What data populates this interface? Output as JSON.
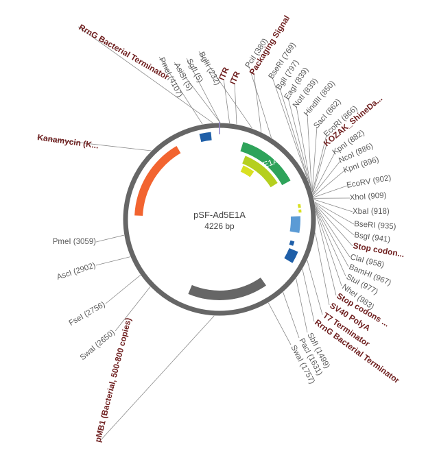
{
  "plasmid": {
    "name": "pSF-Ad5E1A",
    "size_label": "4226 bp",
    "total_bp": 4226
  },
  "colors": {
    "backbone": "#666666",
    "kanamycin": "#f26430",
    "orange_dark": "#d44a1a",
    "blue_dark": "#1f5fa8",
    "blue_light": "#5b9bd5",
    "green": "#2ea35a",
    "yellow_green": "#b5cf1f",
    "yellow": "#d9e021",
    "ori_grey": "#666666",
    "site_text": "#5a5a5a",
    "feature_text": "#6e1e1e"
  },
  "sites": [
    {
      "label": "BglII (232)",
      "bp": 232
    },
    {
      "label": "SgfI (5)",
      "bp": 5
    },
    {
      "label": "AsiSI (5)",
      "bp": 5
    },
    {
      "label": "PmeI (4107)",
      "bp": 4107
    },
    {
      "label": "PciI (380)",
      "bp": 380
    },
    {
      "label": "BseRI (769)",
      "bp": 769
    },
    {
      "label": "BglI (797)",
      "bp": 797
    },
    {
      "label": "EagI (839)",
      "bp": 839
    },
    {
      "label": "NotI (839)",
      "bp": 839
    },
    {
      "label": "HindIII (850)",
      "bp": 850
    },
    {
      "label": "SacI (862)",
      "bp": 862
    },
    {
      "label": "EcoRI (866)",
      "bp": 866
    },
    {
      "label": "KpnI (882)",
      "bp": 882
    },
    {
      "label": "NcoI (886)",
      "bp": 886
    },
    {
      "label": "KpnI (896)",
      "bp": 896
    },
    {
      "label": "EcoRV (902)",
      "bp": 902
    },
    {
      "label": "XhoI (909)",
      "bp": 909
    },
    {
      "label": "XbaI (918)",
      "bp": 918
    },
    {
      "label": "BseRI (935)",
      "bp": 935
    },
    {
      "label": "BsgI (941)",
      "bp": 941
    },
    {
      "label": "ClaI (958)",
      "bp": 958
    },
    {
      "label": "BamHI (967)",
      "bp": 967
    },
    {
      "label": "StuI (977)",
      "bp": 977
    },
    {
      "label": "NheI (983)",
      "bp": 983
    },
    {
      "label": "SbfI (1499)",
      "bp": 1499
    },
    {
      "label": "PacI (1631)",
      "bp": 1631
    },
    {
      "label": "SwaI (1757)",
      "bp": 1757
    },
    {
      "label": "SwaI (2650)",
      "bp": 2650
    },
    {
      "label": "FseI (2756)",
      "bp": 2756
    },
    {
      "label": "AscI (2902)",
      "bp": 2902
    },
    {
      "label": "PmeI (3059)",
      "bp": 3059
    }
  ],
  "features": [
    {
      "label": "RrnG Bacterial Terminator",
      "bp": 4180
    },
    {
      "label": "ITR",
      "bp": 70
    },
    {
      "label": "ITR",
      "bp": 120
    },
    {
      "label": "Packaging Signal",
      "bp": 300
    },
    {
      "label": "KOZAK_ShineDa...",
      "bp": 875
    },
    {
      "label": "Stop codon...",
      "bp": 950
    },
    {
      "label": "Stop codons ...",
      "bp": 1000
    },
    {
      "label": "SV40 PolyA",
      "bp": 1150
    },
    {
      "label": "T7 Terminator",
      "bp": 1350
    },
    {
      "label": "RrnG Bacterial Terminator",
      "bp": 1420
    },
    {
      "label": "Kanamycin (K...",
      "bp": 3700
    },
    {
      "label": "pMB1 (Bacterial, 500-800 copies)",
      "bp": 2150
    }
  ],
  "arcs": [
    {
      "name": "kanamycin-arc",
      "color": "#f26430",
      "start_bp": 3200,
      "end_bp": 3870
    },
    {
      "name": "rrng-terminator-arc-top",
      "color": "#1f5fa8",
      "start_bp": 4070,
      "end_bp": 4160
    },
    {
      "name": "e1a-arc",
      "color": "#2ea35a",
      "start_bp": 200,
      "end_bp": 720,
      "label": "E1A"
    },
    {
      "name": "orf-arc-inner-1",
      "color": "#b5cf1f",
      "start_bp": 260,
      "end_bp": 680
    },
    {
      "name": "orf-arc-inner-2",
      "color": "#d9e021",
      "start_bp": 280,
      "end_bp": 420
    },
    {
      "name": "stop-codon-arc-1",
      "color": "#d9e021",
      "start_bp": 930,
      "end_bp": 960
    },
    {
      "name": "stop-codon-arc-2",
      "color": "#d9e021",
      "start_bp": 975,
      "end_bp": 1000
    },
    {
      "name": "sv40-polya-arc",
      "color": "#5b9bd5",
      "start_bp": 1030,
      "end_bp": 1170
    },
    {
      "name": "t7-terminator-arc",
      "color": "#1f5fa8",
      "start_bp": 1250,
      "end_bp": 1290
    },
    {
      "name": "rrng-terminator-arc-bottom",
      "color": "#1f5fa8",
      "start_bp": 1320,
      "end_bp": 1420
    },
    {
      "name": "pmb1-ori-arc",
      "color": "#666666",
      "start_bp": 1700,
      "end_bp": 2380
    }
  ]
}
